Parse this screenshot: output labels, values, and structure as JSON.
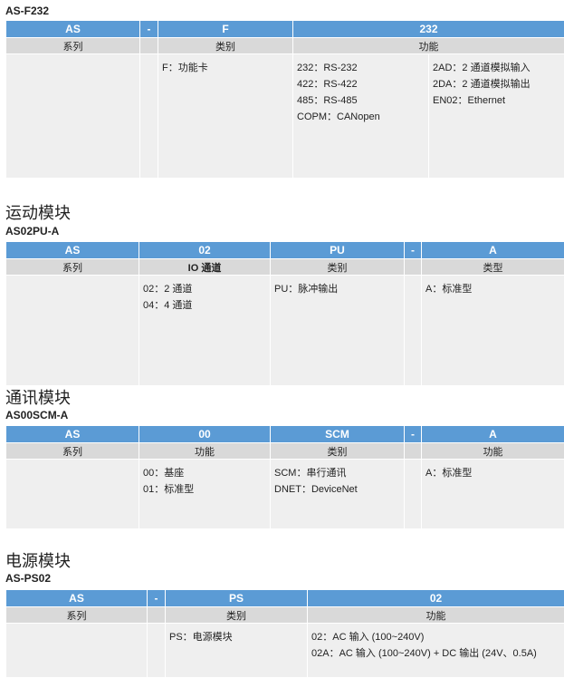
{
  "t1": {
    "code": "AS-F232",
    "head": [
      "AS",
      "-",
      "F",
      "232"
    ],
    "sub": [
      "系列",
      "",
      "类别",
      "功能"
    ],
    "body": {
      "c2": [
        "F：功能卡"
      ],
      "c3": [
        "232：RS-232",
        "422：RS-422",
        "485：RS-485",
        "COPM：CANopen"
      ],
      "c4": [
        "2AD：2 通道模拟输入",
        "2DA：2 通道模拟输出",
        "EN02：Ethernet"
      ]
    }
  },
  "t2": {
    "section": "运动模块",
    "code": "AS02PU-A",
    "head": [
      "AS",
      "02",
      "PU",
      "-",
      "A"
    ],
    "sub": [
      "系列",
      "IO 通道",
      "类别",
      "",
      "类型"
    ],
    "body": {
      "c1": [
        "02：2 通道",
        "04：4 通道"
      ],
      "c2": [
        "PU：脉冲输出"
      ],
      "c4": [
        "A：标准型"
      ]
    }
  },
  "t3": {
    "section": "通讯模块",
    "code": "AS00SCM-A",
    "head": [
      "AS",
      "00",
      "SCM",
      "-",
      "A"
    ],
    "sub": [
      "系列",
      "功能",
      "类别",
      "",
      "功能"
    ],
    "body": {
      "c1": [
        "00：基座",
        "01：标准型"
      ],
      "c2": [
        "SCM：串行通讯",
        "DNET：DeviceNet"
      ],
      "c4": [
        "A：标准型"
      ]
    }
  },
  "t4": {
    "section": "电源模块",
    "code": "AS-PS02",
    "head": [
      "AS",
      "-",
      "PS",
      "02"
    ],
    "sub": [
      "系列",
      "",
      "类别",
      "功能"
    ],
    "body": {
      "c2": [
        "PS：电源模块"
      ],
      "c3": [
        "02：AC 输入 (100~240V)",
        "02A：AC 输入 (100~240V) + DC 输出 (24V、0.5A)"
      ]
    }
  },
  "colors": {
    "header": "#5b9bd5",
    "subheader": "#d9d9d9",
    "body": "#efefef"
  }
}
